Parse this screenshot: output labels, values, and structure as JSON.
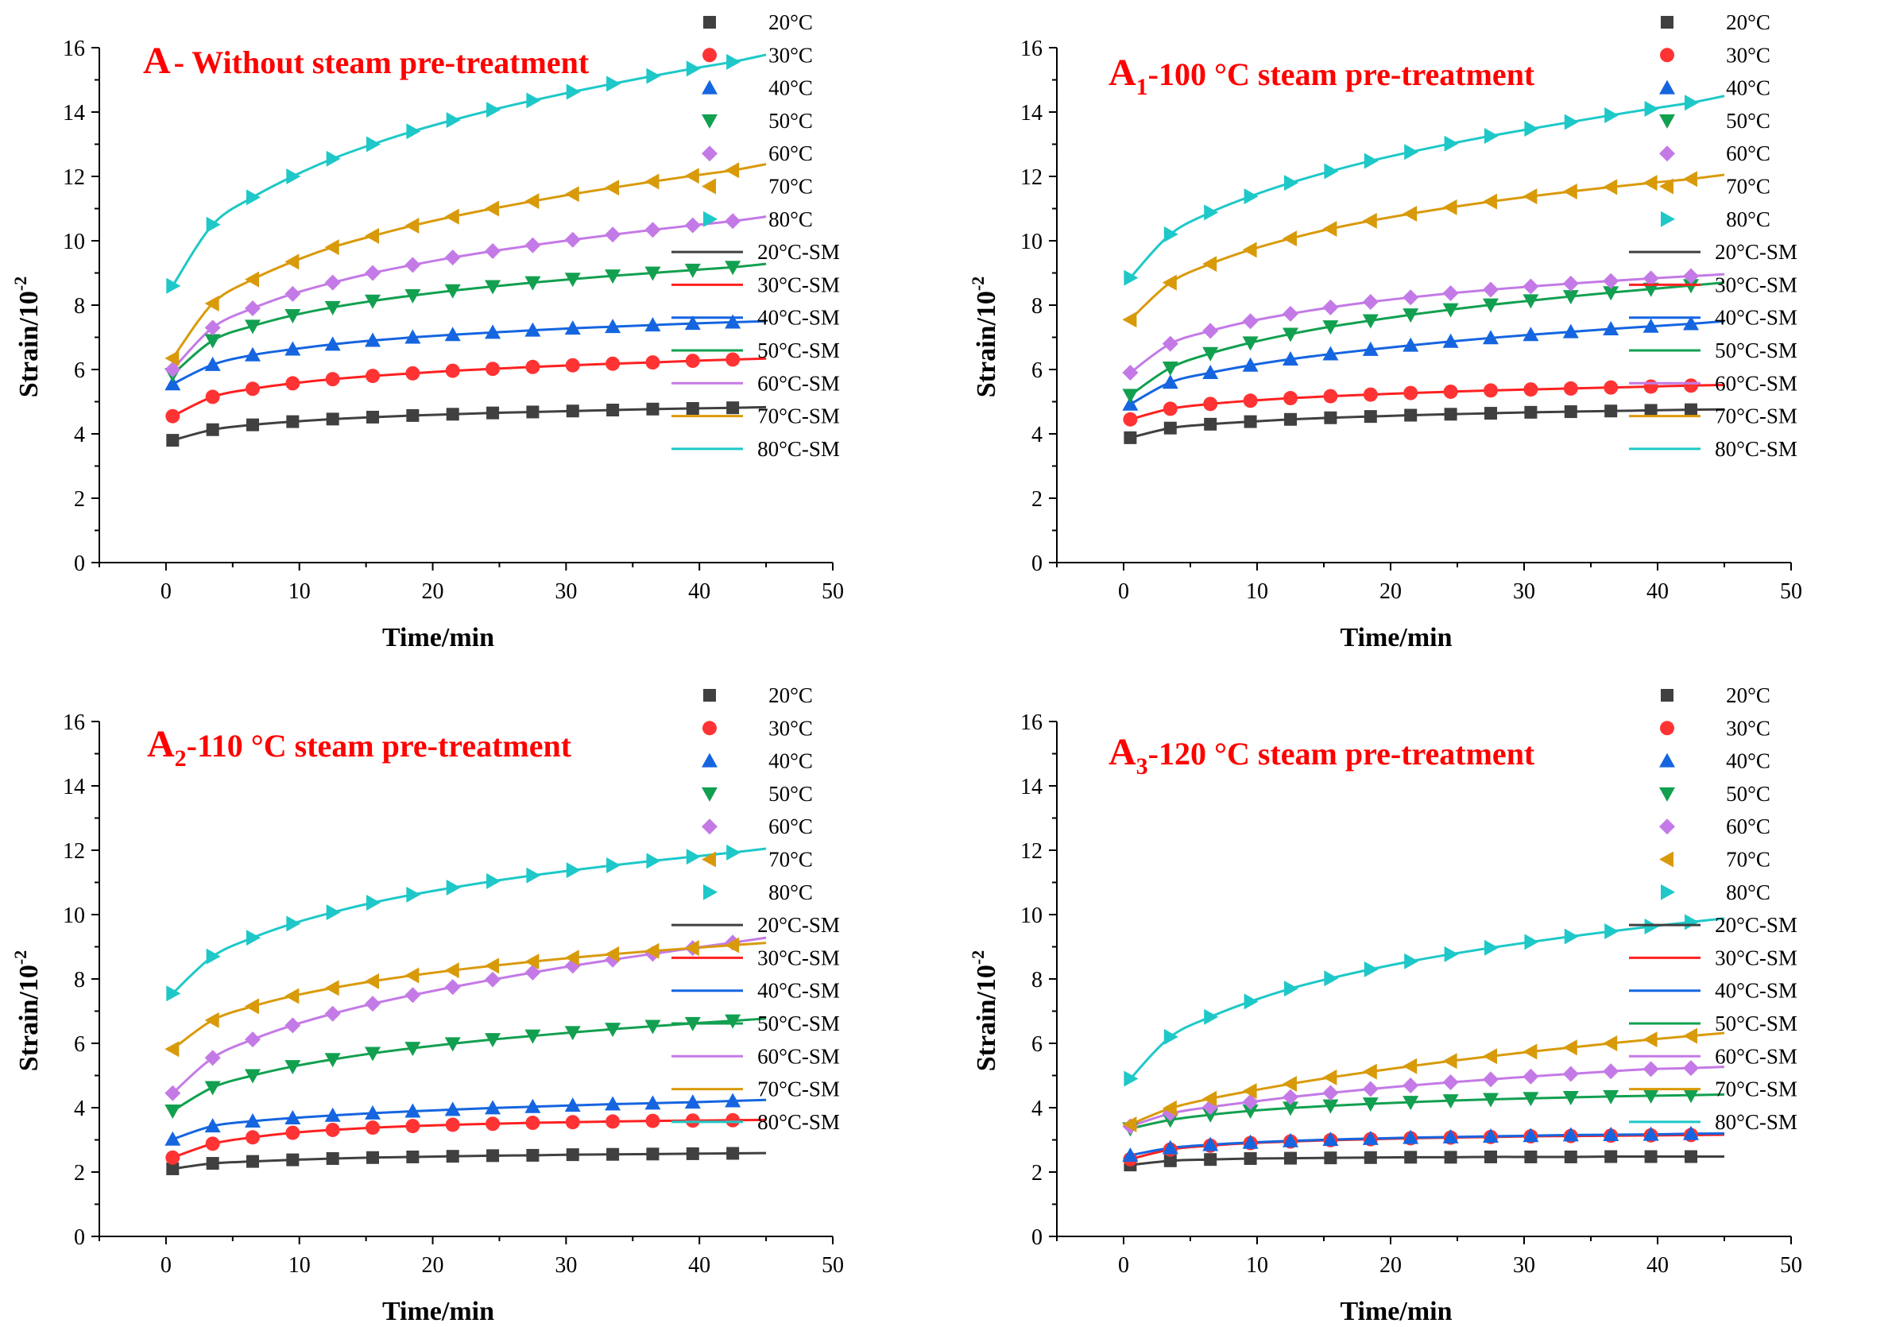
{
  "chart_data": [
    {
      "type": "line",
      "title_prefix": "A",
      "title_sub": "",
      "title_text": "- Without steam pre-treatment",
      "xlabel": "Time/min",
      "ylabel_main": "Strain/10",
      "ylabel_sup": "-2",
      "xlim": [
        -5,
        50
      ],
      "ylim": [
        0,
        16
      ],
      "xticks": [
        0,
        10,
        20,
        30,
        40,
        50
      ],
      "yticks": [
        0,
        2,
        4,
        6,
        8,
        10,
        12,
        14,
        16
      ],
      "x": [
        0.5,
        3.5,
        6.5,
        9.5,
        12.5,
        15.5,
        18.5,
        21.5,
        24.5,
        27.5,
        30.5,
        33.5,
        36.5,
        39.5,
        42.5
      ],
      "fit_x_end": 45,
      "series": [
        {
          "name": "20°C",
          "fit_name": "20°C-SM",
          "color": "#404040",
          "fit_color": "#404040",
          "marker": "square",
          "values": [
            3.8,
            4.13,
            4.28,
            4.38,
            4.46,
            4.52,
            4.57,
            4.61,
            4.65,
            4.68,
            4.71,
            4.74,
            4.77,
            4.79,
            4.81
          ],
          "fit_end": 4.83
        },
        {
          "name": "30°C",
          "fit_name": "30°C-SM",
          "color": "#ff3333",
          "fit_color": "#ff2020",
          "marker": "circle",
          "values": [
            4.55,
            5.15,
            5.4,
            5.57,
            5.7,
            5.8,
            5.88,
            5.96,
            6.02,
            6.08,
            6.13,
            6.18,
            6.22,
            6.27,
            6.31
          ],
          "fit_end": 6.34
        },
        {
          "name": "40°C",
          "fit_name": "40°C-SM",
          "color": "#1565e0",
          "fit_color": "#1565e0",
          "marker": "triangle-up",
          "values": [
            5.55,
            6.15,
            6.45,
            6.63,
            6.78,
            6.9,
            7.0,
            7.08,
            7.15,
            7.22,
            7.28,
            7.33,
            7.38,
            7.43,
            7.47
          ],
          "fit_end": 7.5
        },
        {
          "name": "50°C",
          "fit_name": "50°C-SM",
          "color": "#12a050",
          "fit_color": "#12a050",
          "marker": "triangle-down",
          "values": [
            5.85,
            6.9,
            7.35,
            7.68,
            7.93,
            8.13,
            8.3,
            8.45,
            8.58,
            8.7,
            8.81,
            8.91,
            9.0,
            9.09,
            9.18
          ],
          "fit_end": 9.28
        },
        {
          "name": "60°C",
          "fit_name": "60°C-SM",
          "color": "#c47ae6",
          "fit_color": "#c47ae6",
          "marker": "diamond",
          "values": [
            6.0,
            7.3,
            7.9,
            8.35,
            8.7,
            9.0,
            9.25,
            9.48,
            9.68,
            9.86,
            10.03,
            10.19,
            10.34,
            10.48,
            10.61
          ],
          "fit_end": 10.75
        },
        {
          "name": "70°C",
          "fit_name": "70°C-SM",
          "color": "#d99a0a",
          "fit_color": "#d99a0a",
          "marker": "triangle-left",
          "values": [
            6.35,
            8.05,
            8.8,
            9.35,
            9.8,
            10.15,
            10.47,
            10.75,
            11.0,
            11.23,
            11.45,
            11.65,
            11.84,
            12.02,
            12.19
          ],
          "fit_end": 12.38
        },
        {
          "name": "80°C",
          "fit_name": "80°C-SM",
          "color": "#1ec8c8",
          "fit_color": "#1ec8c8",
          "marker": "triangle-right",
          "values": [
            8.6,
            10.5,
            11.35,
            12.0,
            12.55,
            13.0,
            13.4,
            13.75,
            14.07,
            14.36,
            14.63,
            14.88,
            15.12,
            15.35,
            15.56
          ],
          "fit_end": 15.78
        }
      ]
    },
    {
      "type": "line",
      "title_prefix": "A",
      "title_sub": "1",
      "title_text": "-100 °C steam pre-treatment",
      "xlabel": "Time/min",
      "ylabel_main": "Strain/10",
      "ylabel_sup": "-2",
      "xlim": [
        -5,
        50
      ],
      "ylim": [
        0,
        16
      ],
      "xticks": [
        0,
        10,
        20,
        30,
        40,
        50
      ],
      "yticks": [
        0,
        2,
        4,
        6,
        8,
        10,
        12,
        14,
        16
      ],
      "x": [
        0.5,
        3.5,
        6.5,
        9.5,
        12.5,
        15.5,
        18.5,
        21.5,
        24.5,
        27.5,
        30.5,
        33.5,
        36.5,
        39.5,
        42.5
      ],
      "fit_x_end": 45,
      "series": [
        {
          "name": "20°C",
          "fit_name": "20°C-SM",
          "color": "#404040",
          "fit_color": "#404040",
          "marker": "square",
          "values": [
            3.88,
            4.18,
            4.3,
            4.38,
            4.45,
            4.5,
            4.54,
            4.58,
            4.61,
            4.64,
            4.67,
            4.69,
            4.71,
            4.73,
            4.75
          ],
          "fit_end": 4.76
        },
        {
          "name": "30°C",
          "fit_name": "30°C-SM",
          "color": "#ff3333",
          "fit_color": "#ff2020",
          "marker": "circle",
          "values": [
            4.45,
            4.78,
            4.93,
            5.03,
            5.11,
            5.17,
            5.22,
            5.27,
            5.31,
            5.35,
            5.38,
            5.41,
            5.44,
            5.47,
            5.5
          ],
          "fit_end": 5.52
        },
        {
          "name": "40°C",
          "fit_name": "40°C-SM",
          "color": "#1565e0",
          "fit_color": "#1565e0",
          "marker": "triangle-up",
          "values": [
            4.92,
            5.6,
            5.9,
            6.13,
            6.32,
            6.48,
            6.62,
            6.75,
            6.87,
            6.98,
            7.08,
            7.17,
            7.26,
            7.34,
            7.42
          ],
          "fit_end": 7.5
        },
        {
          "name": "50°C",
          "fit_name": "50°C-SM",
          "color": "#12a050",
          "fit_color": "#12a050",
          "marker": "triangle-down",
          "values": [
            5.2,
            6.05,
            6.5,
            6.83,
            7.1,
            7.33,
            7.52,
            7.7,
            7.86,
            8.01,
            8.14,
            8.27,
            8.39,
            8.5,
            8.61
          ],
          "fit_end": 8.7
        },
        {
          "name": "60°C",
          "fit_name": "60°C-SM",
          "color": "#c47ae6",
          "fit_color": "#c47ae6",
          "marker": "diamond",
          "values": [
            5.9,
            6.8,
            7.2,
            7.5,
            7.73,
            7.93,
            8.1,
            8.24,
            8.37,
            8.48,
            8.58,
            8.67,
            8.75,
            8.83,
            8.9
          ],
          "fit_end": 8.96
        },
        {
          "name": "70°C",
          "fit_name": "70°C-SM",
          "color": "#d99a0a",
          "fit_color": "#d99a0a",
          "marker": "triangle-left",
          "values": [
            7.55,
            8.7,
            9.28,
            9.72,
            10.07,
            10.37,
            10.62,
            10.84,
            11.04,
            11.22,
            11.38,
            11.53,
            11.67,
            11.8,
            11.92
          ],
          "fit_end": 12.05
        },
        {
          "name": "80°C",
          "fit_name": "80°C-SM",
          "color": "#1ec8c8",
          "fit_color": "#1ec8c8",
          "marker": "triangle-right",
          "values": [
            8.85,
            10.2,
            10.88,
            11.38,
            11.8,
            12.16,
            12.48,
            12.76,
            13.02,
            13.26,
            13.48,
            13.69,
            13.9,
            14.1,
            14.29
          ],
          "fit_end": 14.5
        }
      ]
    },
    {
      "type": "line",
      "title_prefix": "A",
      "title_sub": "2",
      "title_text": "-110 °C steam pre-treatment",
      "xlabel": "Time/min",
      "ylabel_main": "Strain/10",
      "ylabel_sup": "-2",
      "xlim": [
        -5,
        50
      ],
      "ylim": [
        0,
        16
      ],
      "xticks": [
        0,
        10,
        20,
        30,
        40,
        50
      ],
      "yticks": [
        0,
        2,
        4,
        6,
        8,
        10,
        12,
        14,
        16
      ],
      "x": [
        0.5,
        3.5,
        6.5,
        9.5,
        12.5,
        15.5,
        18.5,
        21.5,
        24.5,
        27.5,
        30.5,
        33.5,
        36.5,
        39.5,
        42.5
      ],
      "fit_x_end": 45,
      "series": [
        {
          "name": "20°C",
          "fit_name": "20°C-SM",
          "color": "#404040",
          "fit_color": "#404040",
          "marker": "square",
          "values": [
            2.1,
            2.27,
            2.33,
            2.38,
            2.42,
            2.45,
            2.47,
            2.49,
            2.51,
            2.52,
            2.54,
            2.55,
            2.56,
            2.57,
            2.58
          ],
          "fit_end": 2.59
        },
        {
          "name": "30°C",
          "fit_name": "30°C-SM",
          "color": "#ff3333",
          "fit_color": "#ff2020",
          "marker": "circle",
          "values": [
            2.45,
            2.88,
            3.08,
            3.22,
            3.31,
            3.38,
            3.43,
            3.47,
            3.5,
            3.53,
            3.55,
            3.57,
            3.59,
            3.6,
            3.61
          ],
          "fit_end": 3.62
        },
        {
          "name": "40°C",
          "fit_name": "40°C-SM",
          "color": "#1565e0",
          "fit_color": "#1565e0",
          "marker": "triangle-up",
          "values": [
            3.02,
            3.43,
            3.58,
            3.68,
            3.76,
            3.83,
            3.89,
            3.94,
            3.99,
            4.03,
            4.07,
            4.11,
            4.14,
            4.17,
            4.21
          ],
          "fit_end": 4.24
        },
        {
          "name": "50°C",
          "fit_name": "50°C-SM",
          "color": "#12a050",
          "fit_color": "#12a050",
          "marker": "triangle-down",
          "values": [
            3.9,
            4.63,
            5.0,
            5.28,
            5.5,
            5.69,
            5.85,
            5.99,
            6.12,
            6.23,
            6.34,
            6.44,
            6.53,
            6.62,
            6.7
          ],
          "fit_end": 6.77
        },
        {
          "name": "60°C",
          "fit_name": "60°C-SM",
          "color": "#c47ae6",
          "fit_color": "#c47ae6",
          "marker": "diamond",
          "values": [
            4.45,
            5.55,
            6.12,
            6.56,
            6.92,
            7.23,
            7.5,
            7.75,
            7.98,
            8.2,
            8.41,
            8.6,
            8.78,
            8.96,
            9.13
          ],
          "fit_end": 9.28
        },
        {
          "name": "70°C",
          "fit_name": "70°C-SM",
          "color": "#d99a0a",
          "fit_color": "#d99a0a",
          "marker": "triangle-left",
          "values": [
            5.82,
            6.72,
            7.15,
            7.47,
            7.72,
            7.93,
            8.11,
            8.27,
            8.41,
            8.54,
            8.66,
            8.77,
            8.87,
            8.96,
            9.05
          ],
          "fit_end": 9.12
        },
        {
          "name": "80°C",
          "fit_name": "80°C-SM",
          "color": "#1ec8c8",
          "fit_color": "#1ec8c8",
          "marker": "triangle-right",
          "values": [
            7.55,
            8.7,
            9.28,
            9.72,
            10.07,
            10.37,
            10.62,
            10.84,
            11.04,
            11.22,
            11.38,
            11.53,
            11.67,
            11.8,
            11.93
          ],
          "fit_end": 12.05
        }
      ]
    },
    {
      "type": "line",
      "title_prefix": "A",
      "title_sub": "3",
      "title_text": "-120 °C steam pre-treatment",
      "xlabel": "Time/min",
      "ylabel_main": "Strain/10",
      "ylabel_sup": "-2",
      "xlim": [
        -5,
        50
      ],
      "ylim": [
        0,
        16
      ],
      "xticks": [
        0,
        10,
        20,
        30,
        40,
        50
      ],
      "yticks": [
        0,
        2,
        4,
        6,
        8,
        10,
        12,
        14,
        16
      ],
      "x": [
        0.5,
        3.5,
        6.5,
        9.5,
        12.5,
        15.5,
        18.5,
        21.5,
        24.5,
        27.5,
        30.5,
        33.5,
        36.5,
        39.5,
        42.5
      ],
      "fit_x_end": 45,
      "series": [
        {
          "name": "20°C",
          "fit_name": "20°C-SM",
          "color": "#404040",
          "fit_color": "#404040",
          "marker": "square",
          "values": [
            2.22,
            2.35,
            2.39,
            2.42,
            2.43,
            2.44,
            2.45,
            2.46,
            2.46,
            2.47,
            2.47,
            2.47,
            2.48,
            2.48,
            2.48
          ],
          "fit_end": 2.48
        },
        {
          "name": "30°C",
          "fit_name": "30°C-SM",
          "color": "#ff3333",
          "fit_color": "#ff2020",
          "marker": "circle",
          "values": [
            2.4,
            2.7,
            2.82,
            2.9,
            2.95,
            2.99,
            3.02,
            3.05,
            3.07,
            3.09,
            3.11,
            3.12,
            3.13,
            3.14,
            3.15
          ],
          "fit_end": 3.16
        },
        {
          "name": "40°C",
          "fit_name": "40°C-SM",
          "color": "#1565e0",
          "fit_color": "#1565e0",
          "marker": "triangle-up",
          "values": [
            2.52,
            2.75,
            2.85,
            2.92,
            2.97,
            3.01,
            3.04,
            3.07,
            3.09,
            3.11,
            3.13,
            3.15,
            3.16,
            3.17,
            3.19
          ],
          "fit_end": 3.2
        },
        {
          "name": "50°C",
          "fit_name": "50°C-SM",
          "color": "#12a050",
          "fit_color": "#12a050",
          "marker": "triangle-down",
          "values": [
            3.35,
            3.62,
            3.78,
            3.9,
            3.99,
            4.06,
            4.12,
            4.17,
            4.22,
            4.26,
            4.29,
            4.32,
            4.35,
            4.37,
            4.39
          ],
          "fit_end": 4.41
        },
        {
          "name": "60°C",
          "fit_name": "60°C-SM",
          "color": "#c47ae6",
          "fit_color": "#c47ae6",
          "marker": "diamond",
          "values": [
            3.42,
            3.82,
            4.02,
            4.18,
            4.33,
            4.46,
            4.58,
            4.69,
            4.79,
            4.88,
            4.97,
            5.05,
            5.13,
            5.2,
            5.23
          ],
          "fit_end": 5.27
        },
        {
          "name": "70°C",
          "fit_name": "70°C-SM",
          "color": "#d99a0a",
          "fit_color": "#d99a0a",
          "marker": "triangle-left",
          "values": [
            3.48,
            3.98,
            4.28,
            4.52,
            4.74,
            4.94,
            5.12,
            5.29,
            5.45,
            5.6,
            5.74,
            5.87,
            6.0,
            6.12,
            6.23
          ],
          "fit_end": 6.32
        },
        {
          "name": "80°C",
          "fit_name": "80°C-SM",
          "color": "#1ec8c8",
          "fit_color": "#1ec8c8",
          "marker": "triangle-right",
          "values": [
            4.9,
            6.2,
            6.82,
            7.3,
            7.7,
            8.02,
            8.3,
            8.55,
            8.77,
            8.97,
            9.15,
            9.32,
            9.48,
            9.63,
            9.77
          ],
          "fit_end": 9.88
        }
      ]
    }
  ]
}
